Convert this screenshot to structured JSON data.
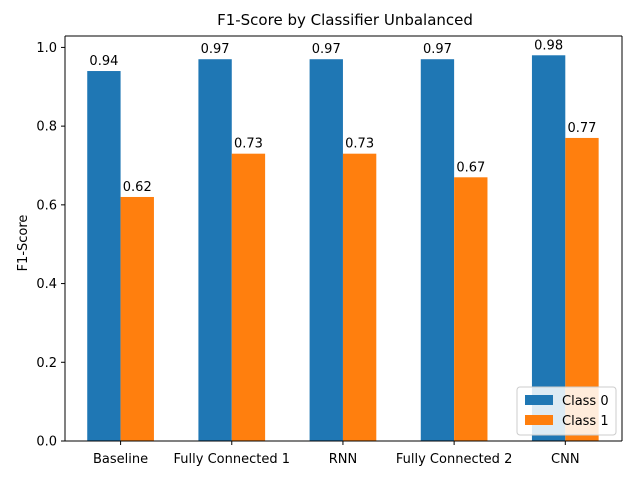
{
  "chart_data": {
    "type": "bar",
    "title": "F1-Score by Classifier Unbalanced",
    "xlabel": "",
    "ylabel": "F1-Score",
    "ylim": [
      0,
      1.029
    ],
    "yticks": [
      0.0,
      0.2,
      0.4,
      0.6,
      0.8,
      1.0
    ],
    "ytick_labels": [
      "0.0",
      "0.2",
      "0.4",
      "0.6",
      "0.8",
      "1.0"
    ],
    "categories": [
      "Baseline",
      "Fully Connected 1",
      "RNN",
      "Fully Connected 2",
      "CNN"
    ],
    "series": [
      {
        "name": "Class 0",
        "color": "#1f77b4",
        "values": [
          0.94,
          0.97,
          0.97,
          0.97,
          0.98
        ],
        "labels": [
          "0.94",
          "0.97",
          "0.97",
          "0.97",
          "0.98"
        ]
      },
      {
        "name": "Class 1",
        "color": "#ff7f0e",
        "values": [
          0.62,
          0.73,
          0.73,
          0.67,
          0.77
        ],
        "labels": [
          "0.62",
          "0.73",
          "0.73",
          "0.67",
          "0.77"
        ]
      }
    ],
    "legend": "bottom-right",
    "grid": false
  }
}
